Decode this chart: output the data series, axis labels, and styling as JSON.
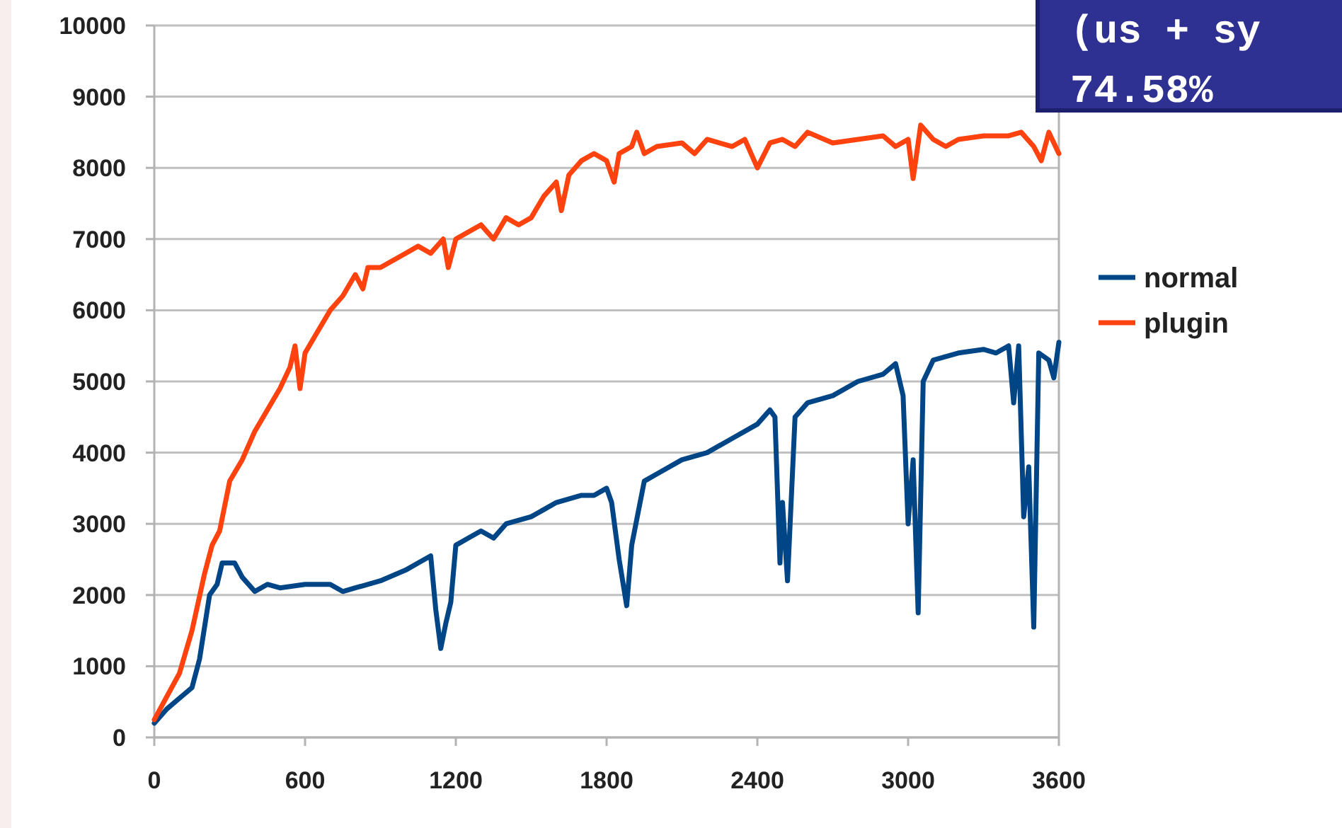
{
  "chart_data": {
    "type": "line",
    "annotations": [
      "(us + sy",
      "74.58%"
    ],
    "xlim": [
      0,
      3600
    ],
    "xticks": [
      0,
      600,
      1200,
      1800,
      2400,
      3000,
      3600
    ],
    "ylim": [
      0,
      10000
    ],
    "yticks": [
      0,
      1000,
      2000,
      3000,
      4000,
      5000,
      6000,
      7000,
      8000,
      9000,
      10000
    ],
    "grid": "y",
    "legend": "right",
    "marker": "none",
    "line_style": "solid",
    "series": [
      {
        "name": "normal",
        "color": "#004586",
        "x": [
          0,
          50,
          100,
          150,
          180,
          220,
          250,
          270,
          320,
          350,
          400,
          450,
          500,
          600,
          700,
          750,
          800,
          900,
          1000,
          1050,
          1100,
          1120,
          1140,
          1160,
          1180,
          1200,
          1250,
          1300,
          1350,
          1400,
          1500,
          1550,
          1600,
          1700,
          1750,
          1800,
          1820,
          1850,
          1880,
          1900,
          1950,
          2000,
          2100,
          2200,
          2300,
          2400,
          2450,
          2470,
          2490,
          2500,
          2520,
          2550,
          2600,
          2700,
          2800,
          2900,
          2950,
          2980,
          3000,
          3020,
          3040,
          3060,
          3100,
          3200,
          3300,
          3350,
          3400,
          3420,
          3440,
          3460,
          3480,
          3500,
          3520,
          3560,
          3580,
          3600
        ],
        "values": [
          200,
          400,
          550,
          700,
          1100,
          2000,
          2150,
          2450,
          2450,
          2250,
          2050,
          2150,
          2100,
          2150,
          2150,
          2050,
          2100,
          2200,
          2350,
          2450,
          2550,
          1800,
          1250,
          1600,
          1900,
          2700,
          2800,
          2900,
          2800,
          3000,
          3100,
          3200,
          3300,
          3400,
          3400,
          3500,
          3300,
          2500,
          1850,
          2700,
          3600,
          3700,
          3900,
          4000,
          4200,
          4400,
          4600,
          4500,
          2450,
          3300,
          2200,
          4500,
          4700,
          4800,
          5000,
          5100,
          5250,
          4800,
          3000,
          3900,
          1750,
          5000,
          5300,
          5400,
          5450,
          5400,
          5500,
          4700,
          5500,
          3100,
          3800,
          1550,
          5400,
          5300,
          5050,
          5550
        ]
      },
      {
        "name": "plugin",
        "color": "#ff420e",
        "x": [
          0,
          100,
          150,
          200,
          230,
          260,
          300,
          350,
          400,
          450,
          500,
          540,
          560,
          580,
          600,
          650,
          700,
          750,
          800,
          830,
          850,
          900,
          950,
          1000,
          1050,
          1100,
          1150,
          1170,
          1200,
          1250,
          1300,
          1350,
          1400,
          1450,
          1500,
          1550,
          1600,
          1620,
          1650,
          1700,
          1750,
          1800,
          1830,
          1850,
          1900,
          1920,
          1950,
          2000,
          2100,
          2150,
          2200,
          2300,
          2350,
          2400,
          2450,
          2500,
          2550,
          2600,
          2700,
          2800,
          2900,
          2950,
          3000,
          3020,
          3050,
          3100,
          3150,
          3200,
          3300,
          3400,
          3450,
          3500,
          3530,
          3560,
          3600
        ],
        "values": [
          250,
          900,
          1500,
          2300,
          2700,
          2900,
          3600,
          3900,
          4300,
          4600,
          4900,
          5200,
          5500,
          4900,
          5400,
          5700,
          6000,
          6200,
          6500,
          6300,
          6600,
          6600,
          6700,
          6800,
          6900,
          6800,
          7000,
          6600,
          7000,
          7100,
          7200,
          7000,
          7300,
          7200,
          7300,
          7600,
          7800,
          7400,
          7900,
          8100,
          8200,
          8100,
          7800,
          8200,
          8300,
          8500,
          8200,
          8300,
          8350,
          8200,
          8400,
          8300,
          8400,
          8000,
          8350,
          8400,
          8300,
          8500,
          8350,
          8400,
          8450,
          8300,
          8400,
          7850,
          8600,
          8400,
          8300,
          8400,
          8450,
          8450,
          8500,
          8300,
          8100,
          8500,
          8200
        ]
      }
    ]
  }
}
